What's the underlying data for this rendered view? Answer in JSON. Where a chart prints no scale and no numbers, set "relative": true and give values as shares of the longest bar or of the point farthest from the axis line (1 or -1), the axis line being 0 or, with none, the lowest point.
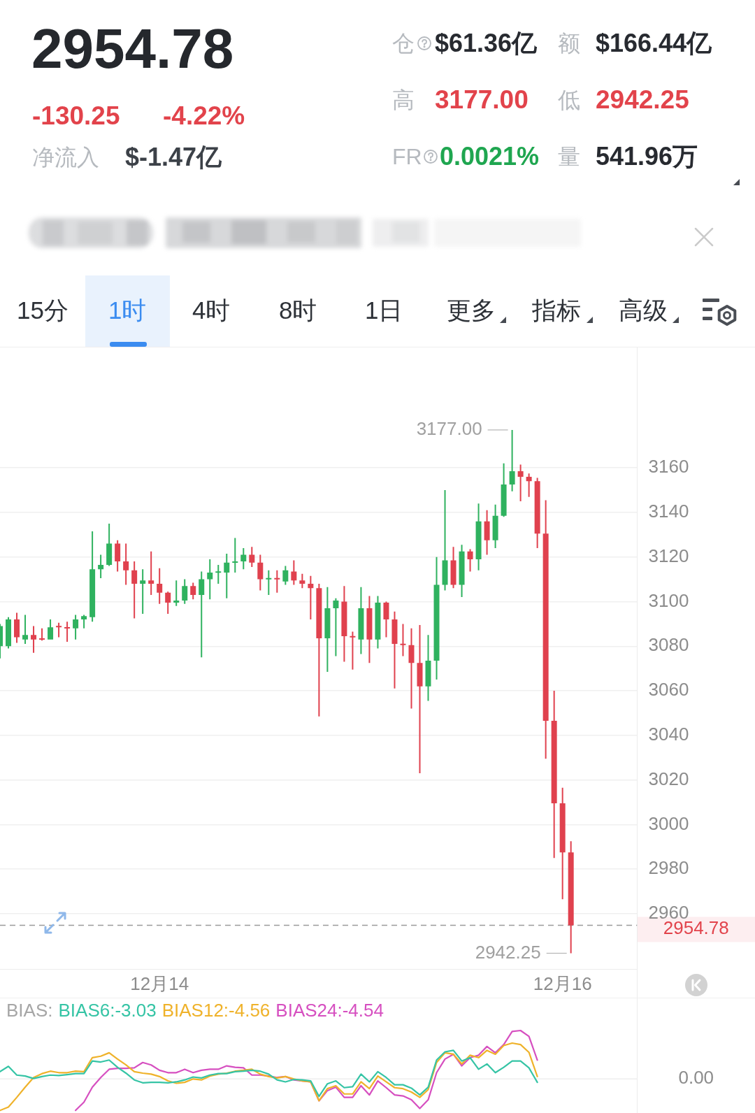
{
  "chart_data": [
    {
      "type": "other",
      "title": "2954.78",
      "annotations": [
        "-130.25",
        "-4.22%",
        "净流入",
        "$-1.47亿",
        "仓",
        "$61.36亿",
        "额",
        "$166.44亿",
        "高",
        "3177.00",
        "低",
        "2942.25",
        "FR",
        "0.0021%",
        "量",
        "541.96万",
        "15分",
        "1时",
        "4时",
        "8时",
        "1日",
        "更多",
        "指标",
        "高级"
      ]
    },
    {
      "type": "candlestick",
      "categories": [
        null,
        null,
        null,
        null,
        null,
        null,
        null,
        null,
        null,
        null,
        null,
        null,
        null,
        null,
        null,
        null,
        null,
        null,
        null,
        "12月14",
        null,
        null,
        null,
        null,
        null,
        null,
        null,
        null,
        null,
        null,
        null,
        null,
        null,
        null,
        null,
        null,
        null,
        null,
        null,
        null,
        null,
        null,
        null,
        null,
        null,
        null,
        null,
        null,
        null,
        null,
        null,
        null,
        null,
        null,
        null,
        null,
        null,
        null,
        null,
        null,
        null,
        null,
        null,
        null,
        null,
        null,
        null,
        "12月16",
        null
      ],
      "ohlc": [
        [
          3080,
          3090,
          3074.5,
          3089
        ],
        [
          3080,
          3093,
          3079,
          3092
        ],
        [
          3092,
          3095,
          3081.5,
          3084
        ],
        [
          3083,
          3094,
          3081,
          3085
        ],
        [
          3085,
          3089,
          3077,
          3083
        ],
        [
          3083.5,
          3088,
          3082.5,
          3083
        ],
        [
          3083,
          3092,
          3083,
          3088.5
        ],
        [
          3089,
          3090.5,
          3084,
          3088.5
        ],
        [
          3088.5,
          3091,
          3082,
          3088
        ],
        [
          3088,
          3094,
          3083,
          3092
        ],
        [
          3092,
          3094,
          3088,
          3093.5
        ],
        [
          3093,
          3131.5,
          3091,
          3114.5
        ],
        [
          3114.5,
          3121,
          3110.5,
          3116.5
        ],
        [
          3116.5,
          3135,
          3116,
          3126
        ],
        [
          3126,
          3127.5,
          3113.5,
          3118
        ],
        [
          3118,
          3126,
          3107.5,
          3114
        ],
        [
          3114,
          3118,
          3092.5,
          3108
        ],
        [
          3108,
          3114.5,
          3094.5,
          3109.5
        ],
        [
          3109.5,
          3122.5,
          3103,
          3108
        ],
        [
          3108,
          3115,
          3099,
          3104
        ],
        [
          3104,
          3104.5,
          3094.5,
          3099.5
        ],
        [
          3099.5,
          3109.5,
          3098,
          3100.5
        ],
        [
          3100.5,
          3110,
          3099,
          3107
        ],
        [
          3107,
          3108.5,
          3101,
          3103
        ],
        [
          3103,
          3113.5,
          3075,
          3110
        ],
        [
          3110,
          3119,
          3101,
          3113
        ],
        [
          3113,
          3116.5,
          3108,
          3113.5
        ],
        [
          3113,
          3121.5,
          3101.5,
          3117.5
        ],
        [
          3117.5,
          3128.5,
          3113,
          3118
        ],
        [
          3118,
          3124,
          3114.5,
          3121
        ],
        [
          3121,
          3124.5,
          3115.5,
          3117.5
        ],
        [
          3117.5,
          3121,
          3105,
          3110
        ],
        [
          3110,
          3114,
          3103,
          3110.5
        ],
        [
          3110.5,
          3114,
          3104,
          3110
        ],
        [
          3109,
          3116,
          3107.5,
          3114
        ],
        [
          3113.5,
          3118.5,
          3107.5,
          3109.5
        ],
        [
          3109.5,
          3112.5,
          3106,
          3108
        ],
        [
          3108,
          3111.5,
          3092,
          3106
        ],
        [
          3106,
          3108,
          3048.5,
          3083.5
        ],
        [
          3083.5,
          3106.5,
          3068.5,
          3097
        ],
        [
          3097,
          3101.5,
          3075.5,
          3100.5
        ],
        [
          3100,
          3107,
          3073,
          3084.5
        ],
        [
          3084.5,
          3086.5,
          3069.5,
          3084
        ],
        [
          3083,
          3106.5,
          3076.5,
          3097
        ],
        [
          3097,
          3102.5,
          3072.5,
          3083
        ],
        [
          3083,
          3102.5,
          3079,
          3099.5
        ],
        [
          3099.5,
          3100,
          3084,
          3092
        ],
        [
          3092,
          3095.5,
          3061,
          3081
        ],
        [
          3081,
          3090,
          3075.5,
          3080.5
        ],
        [
          3080.5,
          3088,
          3052,
          3072.5
        ],
        [
          3072.5,
          3089.5,
          3023,
          3062
        ],
        [
          3062,
          3085,
          3055.5,
          3073.5
        ],
        [
          3073.5,
          3120,
          3065,
          3107.5
        ],
        [
          3107.5,
          3150,
          3105,
          3118.5
        ],
        [
          3118.5,
          3124.5,
          3106,
          3107.5
        ],
        [
          3107.5,
          3125.5,
          3102,
          3122.5
        ],
        [
          3122.5,
          3123.5,
          3113.5,
          3119
        ],
        [
          3119,
          3144,
          3114,
          3136
        ],
        [
          3136,
          3141,
          3121,
          3127.5
        ],
        [
          3127.5,
          3143.5,
          3124,
          3138.5
        ],
        [
          3138.5,
          3162,
          3138,
          3152.5
        ],
        [
          3152.5,
          3177,
          3149.5,
          3158.5
        ],
        [
          3158.5,
          3161.5,
          3145,
          3156
        ],
        [
          3156,
          3157.5,
          3147,
          3154
        ],
        [
          3154,
          3155.5,
          3124,
          3130.5
        ],
        [
          3130.5,
          3145.5,
          3029.5,
          3046.5
        ],
        [
          3046.5,
          3060,
          2985,
          3009.5
        ],
        [
          3009.5,
          3016.5,
          2966.5,
          2987.5
        ],
        [
          2987.5,
          2992.5,
          2942.25,
          2954.78
        ]
      ],
      "colors": [
        "#2fb25f",
        "#2fb25f",
        "#e0414e",
        "#2fb25f",
        "#e0414e",
        "#e0414e",
        "#2fb25f",
        "#e0414e",
        "#e0414e",
        "#2fb25f",
        "#2fb25f",
        "#2fb25f",
        "#2fb25f",
        "#2fb25f",
        "#e0414e",
        "#e0414e",
        "#e0414e",
        "#2fb25f",
        "#e0414e",
        "#e0414e",
        "#e0414e",
        "#2fb25f",
        "#2fb25f",
        "#e0414e",
        "#2fb25f",
        "#2fb25f",
        "#2fb25f",
        "#2fb25f",
        "#2fb25f",
        "#2fb25f",
        "#e0414e",
        "#e0414e",
        "#2fb25f",
        "#e0414e",
        "#2fb25f",
        "#e0414e",
        "#e0414e",
        "#e0414e",
        "#e0414e",
        "#2fb25f",
        "#2fb25f",
        "#e0414e",
        "#e0414e",
        "#2fb25f",
        "#e0414e",
        "#2fb25f",
        "#e0414e",
        "#e0414e",
        "#e0414e",
        "#e0414e",
        "#e0414e",
        "#2fb25f",
        "#2fb25f",
        "#2fb25f",
        "#e0414e",
        "#2fb25f",
        "#e0414e",
        "#2fb25f",
        "#e0414e",
        "#2fb25f",
        "#2fb25f",
        "#2fb25f",
        "#e0414e",
        "#e0414e",
        "#e0414e",
        "#e0414e",
        "#e0414e",
        "#e0414e",
        "#e0414e"
      ],
      "ylim": [
        2935,
        3214
      ],
      "yticks": [
        2960,
        2980,
        3000,
        3020,
        3040,
        3060,
        3080,
        3100,
        3120,
        3140,
        3160
      ],
      "grid": "y",
      "ref_lines": [
        {
          "axis": "y",
          "value": 2954.78,
          "label": "2954.78",
          "color": "#9a9a9a",
          "line_style": "dashed"
        }
      ],
      "annotations": [
        "3177.00",
        "2942.25"
      ]
    },
    {
      "type": "line",
      "relative": true,
      "legend_title": "BIAS:",
      "legend": "top left",
      "categories": [
        null,
        null,
        null,
        null,
        null,
        null,
        null,
        null,
        null,
        null,
        null,
        null,
        null,
        null,
        null,
        null,
        null,
        null,
        null,
        null,
        null,
        null,
        null,
        null,
        null,
        null,
        null,
        null,
        null,
        null,
        null,
        null,
        null,
        null,
        null,
        null,
        null,
        null,
        null,
        null,
        null,
        null,
        null,
        null,
        null,
        null,
        null,
        null,
        null,
        null,
        null,
        null,
        null,
        null,
        null,
        null,
        null,
        null,
        null,
        null,
        null,
        null,
        null,
        null,
        null,
        null,
        null,
        null,
        null
      ],
      "ref_lines": [
        {
          "axis": "y",
          "value": 0,
          "color": "#eeeeee"
        }
      ],
      "annotations": [
        "0.00"
      ],
      "series": [
        {
          "name": "BIAS6:-3.03",
          "color": "#35c4a5",
          "values": [
            0.15,
            0.26,
            0.08,
            0.06,
            0.01,
            0.05,
            0.08,
            0.07,
            0.09,
            0.11,
            0.11,
            0.37,
            0.35,
            0.39,
            0.24,
            0.12,
            -0.02,
            -0.08,
            -0.07,
            -0.07,
            -0.08,
            -0.06,
            -0.02,
            0.04,
            0.02,
            0.08,
            0.11,
            0.11,
            0.15,
            0.16,
            0.18,
            0.16,
            0.1,
            -0.02,
            -0.06,
            -0.01,
            -0.02,
            -0.04,
            -0.36,
            -0.1,
            -0.04,
            -0.18,
            -0.16,
            0.1,
            -0.06,
            0.15,
            0.03,
            -0.12,
            -0.12,
            -0.19,
            -0.33,
            -0.17,
            0.39,
            0.56,
            0.59,
            0.37,
            0.44,
            0.2,
            0.31,
            0.13,
            0.24,
            0.37,
            0.37,
            0.23,
            -0.07,
            null,
            null,
            null,
            null
          ]
        },
        {
          "name": "BIAS12:-4.56",
          "color": "#efb22a",
          "values": [
            -0.65,
            -0.58,
            -0.38,
            -0.17,
            0.03,
            0.11,
            0.16,
            0.13,
            0.13,
            0.16,
            0.15,
            0.44,
            0.47,
            0.54,
            0.41,
            0.29,
            0.15,
            0.12,
            0.1,
            0.05,
            -0.04,
            -0.09,
            -0.07,
            0,
            -0.02,
            0.06,
            0.1,
            0.12,
            0.16,
            0.18,
            0.2,
            0.1,
            0.05,
            0.02,
            0.05,
            0,
            -0.04,
            -0.06,
            -0.45,
            -0.2,
            -0.14,
            -0.31,
            -0.31,
            -0.06,
            -0.2,
            0.06,
            -0.06,
            -0.18,
            -0.2,
            -0.27,
            -0.38,
            -0.22,
            0.34,
            0.54,
            0.51,
            0.31,
            0.49,
            0.44,
            0.59,
            0.51,
            0.69,
            0.74,
            0.71,
            0.55,
            0.05,
            null,
            null,
            null,
            null
          ]
        },
        {
          "name": "BIAS24:-4.54",
          "color": "#d64fc0",
          "values": [
            null,
            null,
            null,
            null,
            null,
            null,
            null,
            null,
            null,
            -0.65,
            -0.48,
            -0.17,
            0.03,
            0.2,
            0.22,
            0.22,
            0.23,
            0.34,
            0.29,
            0.18,
            0.13,
            0.13,
            0.2,
            0.13,
            0.18,
            0.2,
            0.2,
            0.27,
            0.24,
            0.23,
            0.08,
            0.08,
            0.06,
            0.03,
            0.05,
            -0.02,
            -0.04,
            -0.06,
            -0.45,
            -0.24,
            -0.17,
            -0.38,
            -0.38,
            -0.14,
            -0.33,
            -0.04,
            -0.18,
            -0.33,
            -0.35,
            -0.43,
            -0.61,
            -0.43,
            0.13,
            0.41,
            0.51,
            0.27,
            0.44,
            0.49,
            0.67,
            0.54,
            0.71,
            0.98,
            1,
            0.88,
            0.39,
            null,
            null,
            null,
            null
          ]
        }
      ]
    }
  ]
}
